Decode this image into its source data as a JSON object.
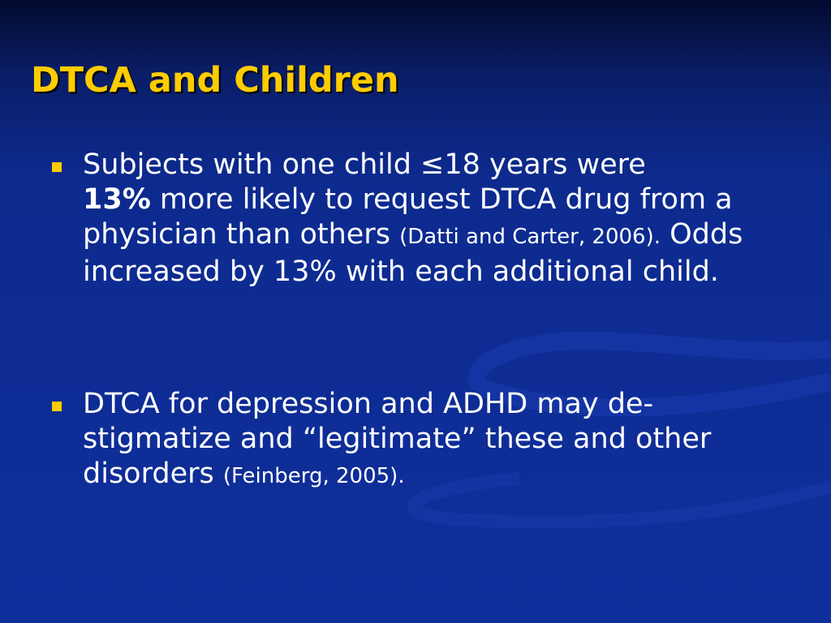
{
  "slide": {
    "title": "DTCA and Children",
    "bullets": [
      {
        "text_1": "Subjects with one child ≤18 years were",
        "emphasis": "13%",
        "text_2": " more likely to request DTCA drug from a physician than others ",
        "citation": "(Datti and Carter, 2006).",
        "text_3": "  Odds increased by 13% with each additional child."
      },
      {
        "text_1": "DTCA for depression and ADHD may de-stigmatize and “legitimate” these and other disorders ",
        "citation": "(Feinberg, 2005)."
      }
    ]
  },
  "colors": {
    "title": "#ffcc00",
    "bullet_marker": "#ffcc00",
    "body_text": "#ffffff",
    "background": "#0f2f9c"
  }
}
